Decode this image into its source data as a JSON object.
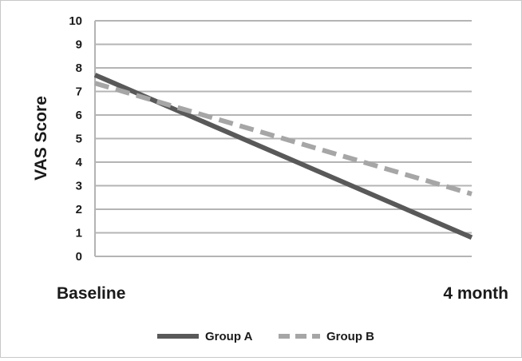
{
  "chart_data": {
    "type": "line",
    "title": "",
    "xlabel": "",
    "ylabel": "VAS  Score",
    "categories": [
      "Baseline",
      "4 month"
    ],
    "ylim": [
      0,
      10
    ],
    "yticks": [
      0,
      1,
      2,
      3,
      4,
      5,
      6,
      7,
      8,
      9,
      10
    ],
    "grid": true,
    "legend_position": "bottom",
    "series": [
      {
        "name": "Group A",
        "values": [
          7.7,
          0.8
        ],
        "color": "#595959",
        "style": "solid"
      },
      {
        "name": "Group B",
        "values": [
          7.35,
          2.65
        ],
        "color": "#a6a6a6",
        "style": "dashed"
      }
    ]
  }
}
